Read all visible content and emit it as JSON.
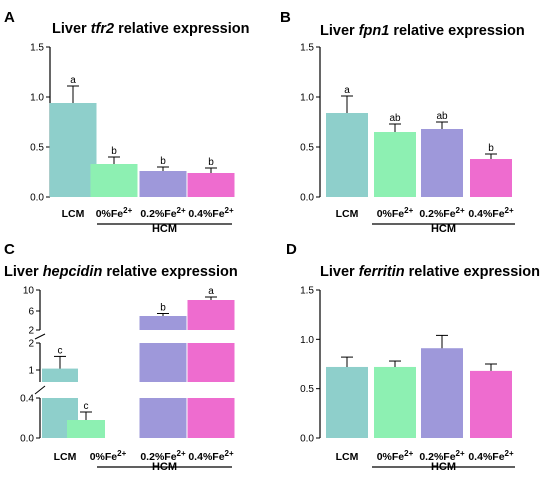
{
  "chart_data": [
    {
      "type": "bar",
      "panel": "A",
      "title_parts": [
        {
          "text": "Liver ",
          "italic": false
        },
        {
          "text": "tfr2",
          "italic": true
        },
        {
          "text": " relative expression",
          "italic": false
        }
      ],
      "categories": [
        "LCM",
        "0%Fe²⁺",
        "0.2%Fe²⁺",
        "0.4%Fe²⁺"
      ],
      "values": [
        0.94,
        0.33,
        0.26,
        0.24
      ],
      "errors": [
        0.17,
        0.07,
        0.04,
        0.05
      ],
      "significance": [
        "a",
        "b",
        "b",
        "b"
      ],
      "colors": [
        "#8ECFCB",
        "#8DF0B2",
        "#9E98DA",
        "#EE6CCF"
      ],
      "ylim": [
        0,
        1.5
      ],
      "yticks": [
        "0.0",
        "0.5",
        "1.0",
        "1.5"
      ],
      "group_label": "HCM"
    },
    {
      "type": "bar",
      "panel": "B",
      "title_parts": [
        {
          "text": "Liver ",
          "italic": false
        },
        {
          "text": "fpn1",
          "italic": true
        },
        {
          "text": "  relative expression",
          "italic": false
        }
      ],
      "categories": [
        "LCM",
        "0%Fe²⁺",
        "0.2%Fe²⁺",
        "0.4%Fe²⁺"
      ],
      "values": [
        0.84,
        0.65,
        0.68,
        0.38
      ],
      "errors": [
        0.17,
        0.08,
        0.07,
        0.05
      ],
      "significance": [
        "a",
        "ab",
        "ab",
        "b"
      ],
      "colors": [
        "#8ECFCB",
        "#8DF0B2",
        "#9E98DA",
        "#EE6CCF"
      ],
      "ylim": [
        0,
        1.5
      ],
      "yticks": [
        "0.0",
        "0.5",
        "1.0",
        "1.5"
      ],
      "group_label": "HCM"
    },
    {
      "type": "bar",
      "panel": "C",
      "title_parts": [
        {
          "text": "Liver ",
          "italic": false
        },
        {
          "text": "hepcidin",
          "italic": true
        },
        {
          "text": "  relative expression",
          "italic": false
        }
      ],
      "categories": [
        "LCM",
        "0%Fe²⁺",
        "0.2%Fe²⁺",
        "0.4%Fe²⁺"
      ],
      "values": [
        0.95,
        0.18,
        4.8,
        8.0
      ],
      "errors": [
        0.5,
        0.08,
        0.5,
        0.6
      ],
      "significance": [
        "c",
        "c",
        "b",
        "a"
      ],
      "colors": [
        "#8ECFCB",
        "#8DF0B2",
        "#9E98DA",
        "#EE6CCF"
      ],
      "axis_segments": "broken",
      "yticks": [
        "0.0",
        "0.4",
        "1",
        "2",
        "2",
        "6",
        "10"
      ],
      "group_label": "HCM"
    },
    {
      "type": "bar",
      "panel": "D",
      "title_parts": [
        {
          "text": "Liver ",
          "italic": false
        },
        {
          "text": "ferritin",
          "italic": true
        },
        {
          "text": "  relative expression",
          "italic": false
        }
      ],
      "categories": [
        "LCM",
        "0%Fe²⁺",
        "0.2%Fe²⁺",
        "0.4%Fe²⁺"
      ],
      "values": [
        0.72,
        0.72,
        0.91,
        0.68
      ],
      "errors": [
        0.1,
        0.06,
        0.13,
        0.07
      ],
      "significance": [
        "",
        "",
        "",
        ""
      ],
      "colors": [
        "#8ECFCB",
        "#8DF0B2",
        "#9E98DA",
        "#EE6CCF"
      ],
      "ylim": [
        0,
        1.5
      ],
      "yticks": [
        "0.0",
        "0.5",
        "1.0",
        "1.5"
      ],
      "group_label": "HCM"
    }
  ]
}
